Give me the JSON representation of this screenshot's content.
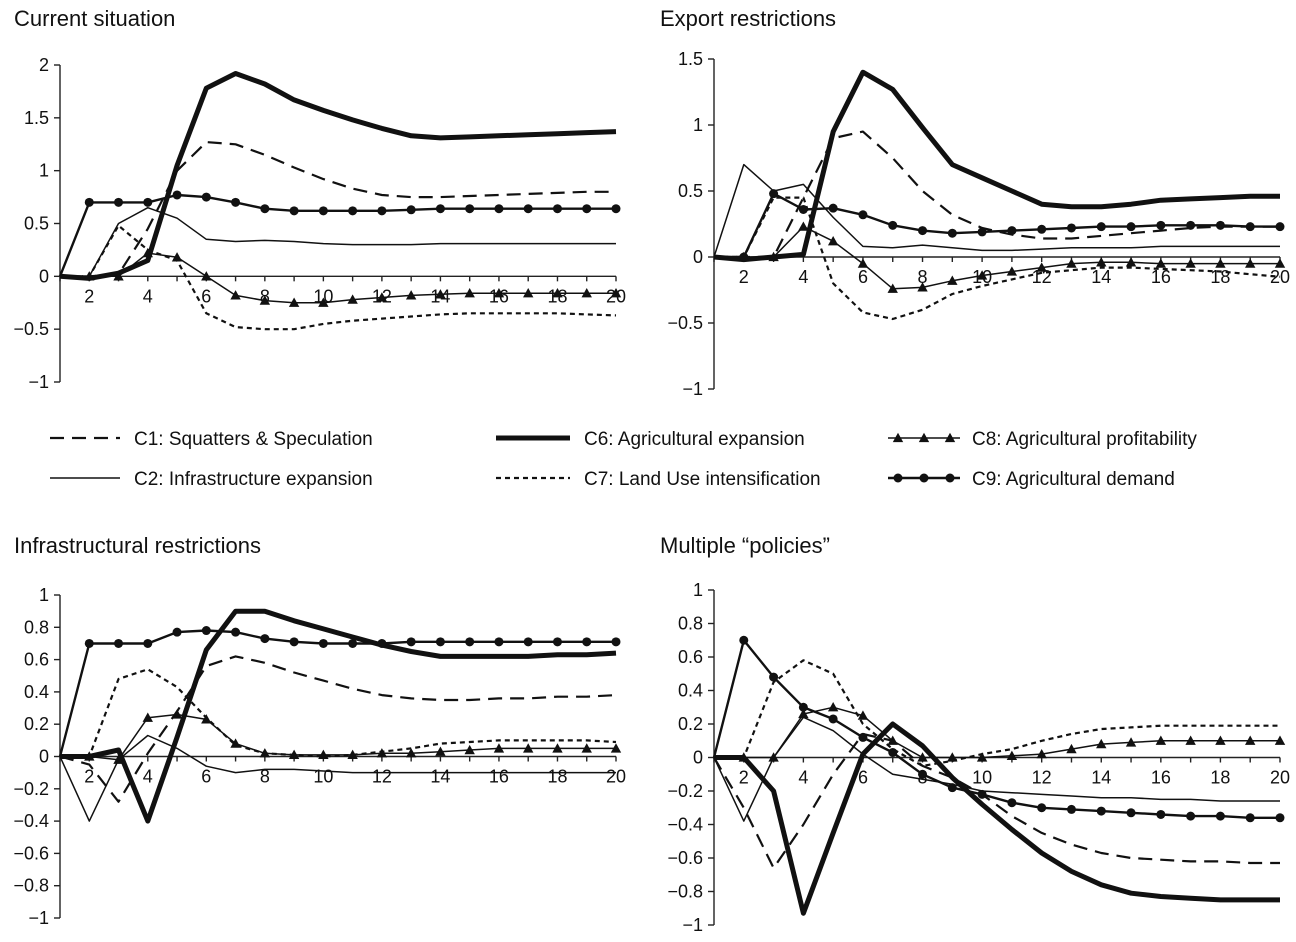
{
  "chart_data": [
    {
      "type": "line",
      "title": "Current situation",
      "x": [
        1,
        2,
        3,
        4,
        5,
        6,
        7,
        8,
        9,
        10,
        11,
        12,
        13,
        14,
        15,
        16,
        17,
        18,
        19,
        20
      ],
      "ylim": [
        -1,
        2
      ],
      "yticks": [
        -1,
        -0.5,
        0,
        0.5,
        1,
        1.5,
        2
      ],
      "ytick_labels": [
        "−1",
        "−0.5",
        "0",
        "0.5",
        "1",
        "1.5",
        "2"
      ],
      "xticks": [
        2,
        4,
        6,
        8,
        10,
        12,
        14,
        16,
        18,
        20
      ],
      "series": [
        {
          "name": "C1: Squatters & Speculation",
          "values": [
            0,
            0,
            0.02,
            0.45,
            1.0,
            1.27,
            1.25,
            1.15,
            1.03,
            0.92,
            0.83,
            0.77,
            0.75,
            0.75,
            0.76,
            0.77,
            0.78,
            0.79,
            0.8,
            0.8
          ]
        },
        {
          "name": "C2: Infrastructure expansion",
          "values": [
            0,
            0,
            0.5,
            0.65,
            0.55,
            0.35,
            0.33,
            0.34,
            0.33,
            0.31,
            0.3,
            0.3,
            0.3,
            0.31,
            0.31,
            0.31,
            0.31,
            0.31,
            0.31,
            0.31
          ]
        },
        {
          "name": "C6: Agricultural expansion",
          "values": [
            0,
            -0.02,
            0.03,
            0.15,
            1.05,
            1.78,
            1.92,
            1.82,
            1.67,
            1.57,
            1.48,
            1.4,
            1.33,
            1.31,
            1.32,
            1.33,
            1.34,
            1.35,
            1.36,
            1.37
          ]
        },
        {
          "name": "C7: Land Use intensification",
          "values": [
            0,
            0,
            0.48,
            0.25,
            0.15,
            -0.35,
            -0.48,
            -0.5,
            -0.5,
            -0.45,
            -0.42,
            -0.4,
            -0.38,
            -0.36,
            -0.35,
            -0.35,
            -0.35,
            -0.35,
            -0.36,
            -0.37
          ]
        },
        {
          "name": "C8: Agricultural profitability",
          "values": [
            0,
            0,
            0,
            0.22,
            0.18,
            0,
            -0.18,
            -0.23,
            -0.25,
            -0.25,
            -0.22,
            -0.2,
            -0.18,
            -0.17,
            -0.16,
            -0.16,
            -0.16,
            -0.16,
            -0.16,
            -0.16
          ]
        },
        {
          "name": "C9: Agricultural demand",
          "values": [
            0,
            0.7,
            0.7,
            0.7,
            0.77,
            0.75,
            0.7,
            0.64,
            0.62,
            0.62,
            0.62,
            0.62,
            0.63,
            0.64,
            0.64,
            0.64,
            0.64,
            0.64,
            0.64,
            0.64
          ]
        }
      ]
    },
    {
      "type": "line",
      "title": "Export restrictions",
      "x": [
        1,
        2,
        3,
        4,
        5,
        6,
        7,
        8,
        9,
        10,
        11,
        12,
        13,
        14,
        15,
        16,
        17,
        18,
        19,
        20
      ],
      "ylim": [
        -1,
        1.5
      ],
      "yticks": [
        -1,
        -0.5,
        0,
        0.5,
        1,
        1.5
      ],
      "ytick_labels": [
        "−1",
        "−0.5",
        "0",
        "0.5",
        "1",
        "1.5"
      ],
      "xticks": [
        2,
        4,
        6,
        8,
        10,
        12,
        14,
        16,
        18,
        20
      ],
      "series": [
        {
          "name": "C1: Squatters & Speculation",
          "values": [
            0,
            0,
            0,
            0.45,
            0.9,
            0.95,
            0.75,
            0.5,
            0.32,
            0.22,
            0.17,
            0.14,
            0.14,
            0.16,
            0.18,
            0.2,
            0.22,
            0.23,
            0.23,
            0.23
          ]
        },
        {
          "name": "C2: Infrastructure expansion",
          "values": [
            0,
            0.7,
            0.5,
            0.55,
            0.3,
            0.08,
            0.07,
            0.09,
            0.07,
            0.05,
            0.05,
            0.06,
            0.07,
            0.07,
            0.07,
            0.08,
            0.08,
            0.08,
            0.08,
            0.08
          ]
        },
        {
          "name": "C6: Agricultural expansion",
          "values": [
            0,
            -0.02,
            0,
            0.02,
            0.95,
            1.4,
            1.27,
            0.98,
            0.7,
            0.6,
            0.5,
            0.4,
            0.38,
            0.38,
            0.4,
            0.43,
            0.44,
            0.45,
            0.46,
            0.46
          ]
        },
        {
          "name": "C7: Land Use intensification",
          "values": [
            0,
            0,
            0.45,
            0.45,
            -0.2,
            -0.42,
            -0.47,
            -0.4,
            -0.28,
            -0.22,
            -0.17,
            -0.12,
            -0.1,
            -0.08,
            -0.08,
            -0.09,
            -0.1,
            -0.11,
            -0.13,
            -0.15
          ]
        },
        {
          "name": "C8: Agricultural profitability",
          "values": [
            0,
            0,
            0,
            0.23,
            0.12,
            -0.05,
            -0.24,
            -0.23,
            -0.18,
            -0.14,
            -0.11,
            -0.08,
            -0.05,
            -0.04,
            -0.04,
            -0.05,
            -0.05,
            -0.05,
            -0.05,
            -0.05
          ]
        },
        {
          "name": "C9: Agricultural demand",
          "values": [
            0,
            0,
            0.48,
            0.36,
            0.37,
            0.32,
            0.24,
            0.2,
            0.18,
            0.19,
            0.2,
            0.21,
            0.22,
            0.23,
            0.23,
            0.24,
            0.24,
            0.24,
            0.23,
            0.23
          ]
        }
      ]
    },
    {
      "type": "line",
      "title": "Infrastructural restrictions",
      "x": [
        1,
        2,
        3,
        4,
        5,
        6,
        7,
        8,
        9,
        10,
        11,
        12,
        13,
        14,
        15,
        16,
        17,
        18,
        19,
        20
      ],
      "ylim": [
        -1,
        1
      ],
      "yticks": [
        -1,
        -0.8,
        -0.6,
        -0.4,
        -0.2,
        0,
        0.2,
        0.4,
        0.6,
        0.8,
        1
      ],
      "ytick_labels": [
        "−1",
        "−0.8",
        "−0.6",
        "−0.4",
        "−0.2",
        "0",
        "0.2",
        "0.4",
        "0.6",
        "0.8",
        "1"
      ],
      "xticks": [
        2,
        4,
        6,
        8,
        10,
        12,
        14,
        16,
        18,
        20
      ],
      "series": [
        {
          "name": "C1: Squatters & Speculation",
          "values": [
            0,
            -0.05,
            -0.28,
            0.02,
            0.28,
            0.56,
            0.62,
            0.58,
            0.52,
            0.47,
            0.42,
            0.38,
            0.36,
            0.35,
            0.35,
            0.36,
            0.36,
            0.37,
            0.37,
            0.38
          ]
        },
        {
          "name": "C2: Infrastructure expansion",
          "values": [
            0,
            -0.4,
            -0.02,
            0.13,
            0.05,
            -0.06,
            -0.1,
            -0.08,
            -0.08,
            -0.09,
            -0.1,
            -0.1,
            -0.1,
            -0.1,
            -0.1,
            -0.1,
            -0.1,
            -0.1,
            -0.1,
            -0.1
          ]
        },
        {
          "name": "C6: Agricultural expansion",
          "values": [
            0,
            0,
            0.04,
            -0.4,
            0.12,
            0.66,
            0.9,
            0.9,
            0.84,
            0.79,
            0.74,
            0.69,
            0.65,
            0.62,
            0.62,
            0.62,
            0.62,
            0.63,
            0.63,
            0.64
          ]
        },
        {
          "name": "C7: Land Use intensification",
          "values": [
            0,
            0,
            0.48,
            0.54,
            0.43,
            0.24,
            0.07,
            0.02,
            0.01,
            0.0,
            0.01,
            0.03,
            0.05,
            0.08,
            0.09,
            0.1,
            0.1,
            0.1,
            0.1,
            0.09
          ]
        },
        {
          "name": "C8: Agricultural profitability",
          "values": [
            0,
            0,
            -0.02,
            0.24,
            0.26,
            0.23,
            0.08,
            0.02,
            0.01,
            0.01,
            0.01,
            0.02,
            0.02,
            0.03,
            0.04,
            0.05,
            0.05,
            0.05,
            0.05,
            0.05
          ]
        },
        {
          "name": "C9: Agricultural demand",
          "values": [
            0,
            0.7,
            0.7,
            0.7,
            0.77,
            0.78,
            0.77,
            0.73,
            0.71,
            0.7,
            0.7,
            0.7,
            0.71,
            0.71,
            0.71,
            0.71,
            0.71,
            0.71,
            0.71,
            0.71
          ]
        }
      ]
    },
    {
      "type": "line",
      "title": "Multiple “policies”",
      "x": [
        1,
        2,
        3,
        4,
        5,
        6,
        7,
        8,
        9,
        10,
        11,
        12,
        13,
        14,
        15,
        16,
        17,
        18,
        19,
        20
      ],
      "ylim": [
        -1,
        1
      ],
      "yticks": [
        -1,
        -0.8,
        -0.6,
        -0.4,
        -0.2,
        0,
        0.2,
        0.4,
        0.6,
        0.8,
        1
      ],
      "ytick_labels": [
        "−1",
        "−0.8",
        "−0.6",
        "−0.4",
        "−0.2",
        "0",
        "0.2",
        "0.4",
        "0.6",
        "0.8",
        "1"
      ],
      "xticks": [
        2,
        4,
        6,
        8,
        10,
        12,
        14,
        16,
        18,
        20
      ],
      "series": [
        {
          "name": "C1: Squatters & Speculation",
          "values": [
            0,
            -0.3,
            -0.66,
            -0.4,
            -0.1,
            0.14,
            0.1,
            -0.05,
            -0.12,
            -0.22,
            -0.35,
            -0.45,
            -0.52,
            -0.57,
            -0.6,
            -0.61,
            -0.62,
            -0.62,
            -0.63,
            -0.63
          ]
        },
        {
          "name": "C2: Infrastructure expansion",
          "values": [
            0,
            -0.38,
            0.0,
            0.24,
            0.16,
            0.02,
            -0.1,
            -0.13,
            -0.16,
            -0.2,
            -0.21,
            -0.22,
            -0.23,
            -0.24,
            -0.24,
            -0.25,
            -0.25,
            -0.26,
            -0.26,
            -0.26
          ]
        },
        {
          "name": "C6: Agricultural expansion",
          "values": [
            0,
            0,
            -0.2,
            -0.93,
            -0.45,
            0.02,
            0.2,
            0.07,
            -0.12,
            -0.28,
            -0.43,
            -0.57,
            -0.68,
            -0.76,
            -0.81,
            -0.83,
            -0.84,
            -0.85,
            -0.85,
            -0.85
          ]
        },
        {
          "name": "C7: Land Use intensification",
          "values": [
            0,
            0,
            0.45,
            0.58,
            0.5,
            0.2,
            0.05,
            -0.05,
            -0.02,
            0.02,
            0.05,
            0.1,
            0.14,
            0.17,
            0.18,
            0.19,
            0.19,
            0.19,
            0.19,
            0.19
          ]
        },
        {
          "name": "C8: Agricultural profitability",
          "values": [
            0,
            0,
            0,
            0.26,
            0.3,
            0.25,
            0.1,
            0.0,
            0.0,
            0.0,
            0.01,
            0.02,
            0.05,
            0.08,
            0.09,
            0.1,
            0.1,
            0.1,
            0.1,
            0.1
          ]
        },
        {
          "name": "C9: Agricultural demand",
          "values": [
            0,
            0.7,
            0.48,
            0.3,
            0.23,
            0.12,
            0.03,
            -0.1,
            -0.18,
            -0.22,
            -0.27,
            -0.3,
            -0.31,
            -0.32,
            -0.33,
            -0.34,
            -0.35,
            -0.35,
            -0.36,
            -0.36
          ]
        }
      ]
    }
  ],
  "legend": {
    "items": [
      {
        "label": "C1: Squatters & Speculation",
        "style": "dashed"
      },
      {
        "label": "C2: Infrastructure expansion",
        "style": "thin"
      },
      {
        "label": "C6: Agricultural expansion",
        "style": "thick"
      },
      {
        "label": "C7: Land Use intensification",
        "style": "dotted"
      },
      {
        "label": "C8: Agricultural profitability",
        "style": "triangle"
      },
      {
        "label": "C9: Agricultural demand",
        "style": "circle"
      }
    ]
  },
  "colors": {
    "line": "#111111",
    "axis": "#222222",
    "background": "#ffffff"
  }
}
